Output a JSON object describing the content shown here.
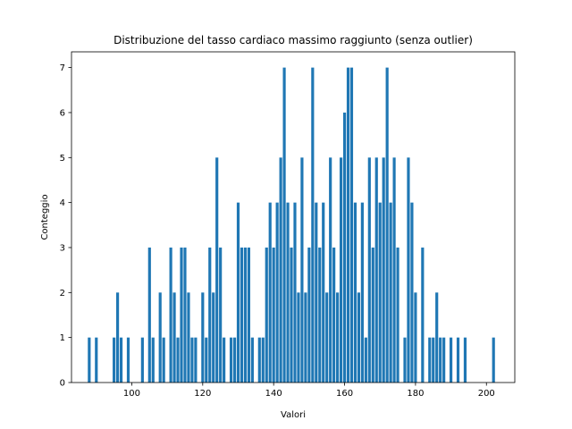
{
  "chart_data": {
    "type": "bar",
    "title": "Distribuzione del tasso cardiaco massimo raggiunto (senza outlier)",
    "xlabel": "Valori",
    "ylabel": "Conteggio",
    "xlim": [
      83,
      208
    ],
    "ylim": [
      0,
      7.35
    ],
    "xticks": [
      100,
      120,
      140,
      160,
      180,
      200
    ],
    "yticks": [
      0,
      1,
      2,
      3,
      4,
      5,
      6,
      7
    ],
    "grid": false,
    "color": "#1f77b4",
    "x": [
      88,
      90,
      95,
      96,
      97,
      99,
      103,
      105,
      106,
      108,
      109,
      111,
      112,
      113,
      114,
      115,
      116,
      117,
      118,
      120,
      121,
      122,
      123,
      124,
      125,
      126,
      128,
      129,
      130,
      131,
      132,
      133,
      134,
      136,
      137,
      138,
      139,
      140,
      141,
      142,
      143,
      144,
      145,
      146,
      147,
      148,
      149,
      150,
      151,
      152,
      153,
      154,
      155,
      156,
      157,
      158,
      159,
      160,
      161,
      162,
      163,
      164,
      165,
      166,
      167,
      168,
      169,
      170,
      171,
      172,
      173,
      174,
      175,
      177,
      178,
      179,
      180,
      182,
      184,
      185,
      186,
      187,
      188,
      190,
      192,
      194,
      202
    ],
    "values": [
      1,
      1,
      1,
      2,
      1,
      1,
      1,
      3,
      1,
      2,
      1,
      3,
      2,
      1,
      3,
      3,
      2,
      1,
      1,
      2,
      1,
      3,
      2,
      5,
      3,
      1,
      1,
      1,
      4,
      3,
      3,
      3,
      1,
      1,
      1,
      3,
      4,
      3,
      4,
      5,
      7,
      4,
      3,
      4,
      2,
      5,
      2,
      3,
      7,
      4,
      3,
      4,
      2,
      5,
      3,
      2,
      5,
      6,
      7,
      7,
      4,
      2,
      4,
      1,
      5,
      3,
      5,
      4,
      5,
      7,
      4,
      5,
      3,
      1,
      5,
      4,
      2,
      3,
      1,
      1,
      2,
      1,
      1,
      1,
      1,
      1,
      1
    ]
  }
}
